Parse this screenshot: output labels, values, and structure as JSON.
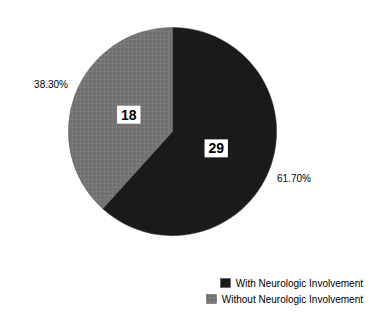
{
  "chart_data": {
    "type": "pie",
    "categories": [
      "With Neurologic Involvement",
      "Without Neurologic Involvement"
    ],
    "values": [
      61.7,
      38.3
    ],
    "value_labels": [
      "61.70%",
      "38.30%"
    ],
    "counts": [
      29,
      18
    ],
    "colors": [
      "#1a1a1a",
      "#7a7a7a"
    ],
    "data_labels": true,
    "legend": "bottom-right"
  }
}
